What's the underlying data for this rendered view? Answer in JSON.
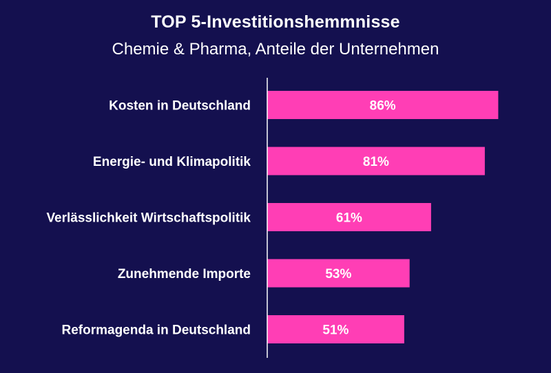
{
  "chart_data": {
    "type": "bar",
    "orientation": "horizontal",
    "title": "TOP 5-Investitionshemmnisse",
    "subtitle": "Chemie & Pharma, Anteile der Unternehmen",
    "categories": [
      "Kosten in Deutschland",
      "Energie- und Klimapolitik",
      "Verlässlichkeit Wirtschaftspolitik",
      "Zunehmende Importe",
      "Reformagenda in Deutschland"
    ],
    "values": [
      86,
      81,
      61,
      53,
      51
    ],
    "value_labels": [
      "86%",
      "81%",
      "61%",
      "53%",
      "51%"
    ],
    "unit": "%",
    "xlim": [
      0,
      100
    ],
    "grid": false,
    "legend": "none",
    "bar_color": "#ff3eb5",
    "background_color": "#14104f",
    "axis_color": "#ffffff"
  }
}
